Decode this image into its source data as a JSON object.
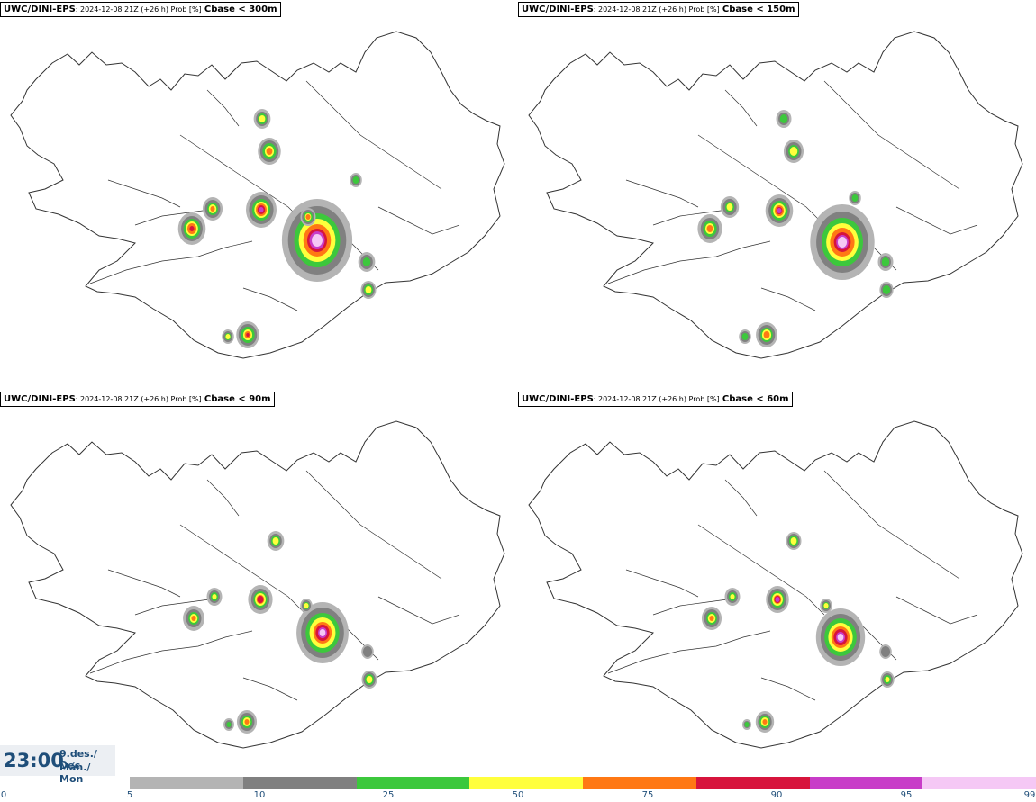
{
  "panels": [
    {
      "model": "UWC/DINI-EPS",
      "run": ": 2024-12-08 21Z (+26 h) Prob [%]",
      "variable": "Cbase < 300m"
    },
    {
      "model": "UWC/DINI-EPS",
      "run": ": 2024-12-08 21Z (+26 h) Prob [%]",
      "variable": "Cbase < 150m"
    },
    {
      "model": "UWC/DINI-EPS",
      "run": ": 2024-12-08 21Z (+26 h) Prob [%]",
      "variable": "Cbase < 90m"
    },
    {
      "model": "UWC/DINI-EPS",
      "run": ": 2024-12-08 21Z (+26 h) Prob [%]",
      "variable": "Cbase < 60m"
    }
  ],
  "valid_time": {
    "time": "23:00",
    "date": "9.des./ Dec",
    "weekday": "Mán./ Mon"
  },
  "legend": {
    "ticks": [
      "0",
      "5",
      "10",
      "25",
      "50",
      "75",
      "90",
      "95",
      "99"
    ],
    "colors": [
      "#b4b4b4",
      "#808080",
      "#3cc83c",
      "#ffff3c",
      "#ff7814",
      "#d7143c",
      "#c83cc8",
      "#f5c8f5"
    ]
  },
  "map_colors": {
    "land_outline": "#333333",
    "p5": "#b4b4b4",
    "p10": "#808080",
    "p25": "#3cc83c",
    "p50": "#ffff3c",
    "p75": "#ff7814",
    "p90": "#d7143c",
    "p95": "#c83cc8",
    "p99": "#f5c8f5"
  }
}
